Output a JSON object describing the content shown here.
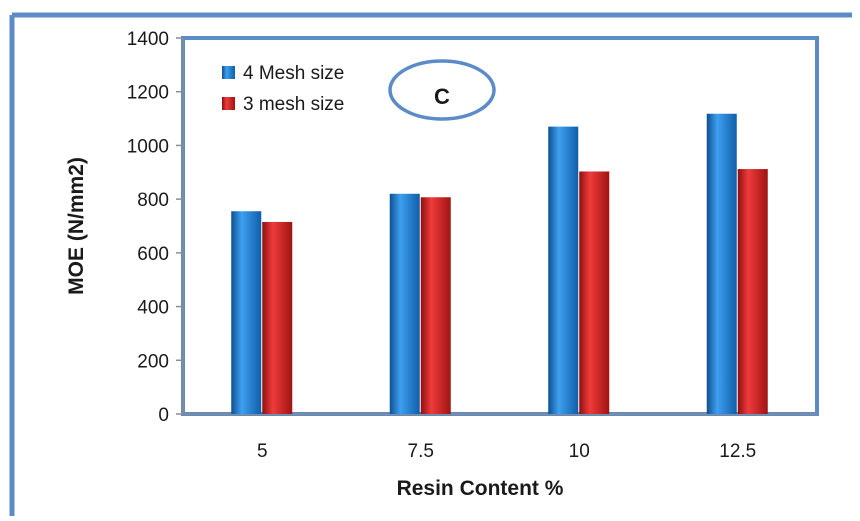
{
  "chart_data": {
    "type": "bar",
    "categories": [
      "5",
      "7.5",
      "10",
      "12.5"
    ],
    "series": [
      {
        "name": "4 Mesh size",
        "values": [
          755,
          820,
          1070,
          1118
        ],
        "color": "#1f7bd1"
      },
      {
        "name": "3 mesh size",
        "values": [
          715,
          807,
          903,
          912
        ],
        "color": "#d11f1f"
      }
    ],
    "xlabel": "Resin Content %",
    "ylabel": "MOE (N/mm2)",
    "ylim": [
      0,
      1400
    ],
    "yticks": [
      "0",
      "200",
      "400",
      "600",
      "800",
      "1000",
      "1200",
      "1400"
    ],
    "grid": false,
    "legend": "top-left",
    "annotation": "C"
  },
  "frame_color": "#5b8cc8",
  "axis_color": "#8c8c8c"
}
